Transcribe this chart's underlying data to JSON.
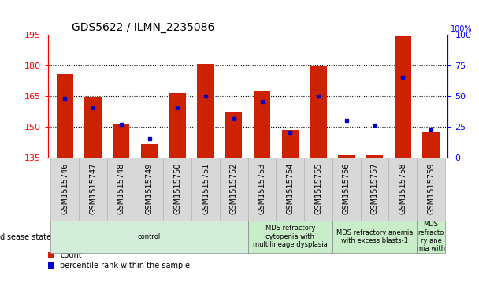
{
  "title": "GDS5622 / ILMN_2235086",
  "samples": [
    "GSM1515746",
    "GSM1515747",
    "GSM1515748",
    "GSM1515749",
    "GSM1515750",
    "GSM1515751",
    "GSM1515752",
    "GSM1515753",
    "GSM1515754",
    "GSM1515755",
    "GSM1515756",
    "GSM1515757",
    "GSM1515758",
    "GSM1515759"
  ],
  "counts": [
    175.5,
    164.5,
    151.5,
    141.5,
    166.5,
    180.5,
    157.0,
    167.0,
    148.5,
    179.5,
    136.0,
    136.0,
    194.0,
    147.5
  ],
  "percentiles": [
    48,
    40,
    27,
    15,
    40,
    50,
    32,
    45,
    20,
    50,
    30,
    26,
    65,
    23
  ],
  "ylim_left": [
    135,
    195
  ],
  "ylim_right": [
    0,
    100
  ],
  "yticks_left": [
    135,
    150,
    165,
    180,
    195
  ],
  "yticks_right": [
    0,
    25,
    50,
    75,
    100
  ],
  "bar_color": "#cc2200",
  "dot_color": "#0000cc",
  "background_color": "#ffffff",
  "grid_color": "#000000",
  "disease_groups": [
    {
      "label": "control",
      "start": 0,
      "end": 7,
      "color": "#d4edda"
    },
    {
      "label": "MDS refractory\ncytopenia with\nmultilineage dysplasia",
      "start": 7,
      "end": 10,
      "color": "#c8edc8"
    },
    {
      "label": "MDS refractory anemia\nwith excess blasts-1",
      "start": 10,
      "end": 13,
      "color": "#c8edc8"
    },
    {
      "label": "MDS\nrefracto\nry ane\nmia with",
      "start": 13,
      "end": 14,
      "color": "#c8edc8"
    }
  ],
  "disease_state_label": "disease state",
  "legend_count_label": "count",
  "legend_pct_label": "percentile rank within the sample",
  "title_fontsize": 10,
  "tick_fontsize": 7,
  "axis_fontsize": 8
}
